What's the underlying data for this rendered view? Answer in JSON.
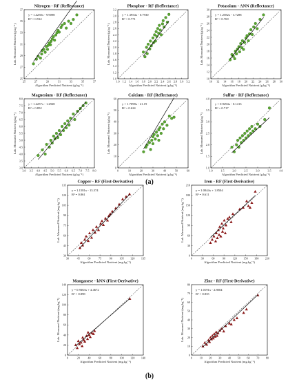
{
  "figure": {
    "labels": [
      "(a)",
      "(b)"
    ]
  },
  "colors": {
    "reflectance_marker": "#5aa832",
    "reflectance_edge": "#2b5a12",
    "derivative_marker": "#8b1a1a",
    "fit_line": "#000000",
    "identity_line": "#555555"
  },
  "chart_data": [
    {
      "type": "scatter",
      "marker": "circle",
      "title": "Nitrogen - RF (Reflectance)",
      "xlabel": "Algorithm Predicted Nutrient (g.kg⁻¹)",
      "ylabel": "Lab. Measured Nutrient (g.kg⁻¹)",
      "equation": "y = 1.4250x - 9.9098",
      "r2": "R² = 0.912",
      "fit": {
        "slope": 1.425,
        "intercept": -9.9098
      },
      "xlim": [
        25,
        37
      ],
      "ylim": [
        25,
        37
      ],
      "xticks": [
        "25",
        "27",
        "29",
        "31",
        "33",
        "35",
        "37"
      ],
      "yticks": [
        "25",
        "27",
        "29",
        "31",
        "33",
        "35",
        "37"
      ],
      "x": [
        26.6,
        27.1,
        27.4,
        27.8,
        28.0,
        28.1,
        28.4,
        28.6,
        28.8,
        29.0,
        29.1,
        29.3,
        29.5,
        29.6,
        29.8,
        30.0,
        30.2,
        30.4,
        30.6,
        30.8,
        31.0,
        31.3,
        31.5,
        31.9,
        32.2,
        32.6,
        33.0,
        33.4,
        34.0
      ],
      "y": [
        27.6,
        28.4,
        28.9,
        28.6,
        29.3,
        29.9,
        30.1,
        29.6,
        30.6,
        30.1,
        30.8,
        31.2,
        30.9,
        31.5,
        31.9,
        32.3,
        31.7,
        32.6,
        33.0,
        33.4,
        33.1,
        33.9,
        34.3,
        34.6,
        33.8,
        35.0,
        34.6,
        35.3,
        36.1
      ]
    },
    {
      "type": "scatter",
      "marker": "circle",
      "title": "Phosphor - RF (Reflectance)",
      "xlabel": "Algorithm Predicted Nutrient (g.kg⁻¹)",
      "ylabel": "Lab. Measured Nutrient (g.kg⁻¹)",
      "equation": "y = 1.3954x - 0.7930",
      "r2": "R² = 0.771",
      "fit": {
        "slope": 1.3954,
        "intercept": -0.793
      },
      "xlim": [
        1.0,
        3.2
      ],
      "ylim": [
        1.0,
        3.2
      ],
      "xticks": [
        "1.0",
        "1.2",
        "1.4",
        "1.6",
        "1.8",
        "2.0",
        "2.2",
        "2.4",
        "2.6",
        "2.8",
        "3.0",
        "3.2"
      ],
      "yticks": [
        "1.0",
        "1.2",
        "1.4",
        "1.6",
        "1.8",
        "2.0",
        "2.2",
        "2.4",
        "2.6",
        "2.8",
        "3.0",
        "3.2"
      ],
      "x": [
        1.8,
        1.85,
        1.9,
        1.92,
        1.95,
        2.0,
        2.02,
        2.05,
        2.1,
        2.12,
        2.15,
        2.18,
        2.2,
        2.22,
        2.25,
        2.28,
        2.3,
        2.33,
        2.36,
        2.4,
        2.42,
        2.45,
        2.5,
        2.55,
        2.6
      ],
      "y": [
        1.85,
        1.7,
        2.0,
        1.8,
        2.1,
        1.95,
        2.2,
        2.05,
        2.3,
        2.15,
        2.4,
        2.2,
        2.5,
        2.35,
        2.6,
        2.45,
        2.7,
        2.55,
        2.4,
        2.75,
        2.85,
        2.65,
        2.95,
        2.8,
        3.05
      ]
    },
    {
      "type": "scatter",
      "marker": "circle",
      "title": "Potassium - ANN (Reflectance)",
      "xlabel": "Algorithm Predicted Nutrient (g.kg⁻¹)",
      "ylabel": "Lab. Measured Nutrient (g.kg⁻¹)",
      "equation": "y = 1.2582x - 3.7288",
      "r2": "R² = 0.769",
      "fit": {
        "slope": 1.2582,
        "intercept": -3.7288
      },
      "xlim": [
        10,
        30
      ],
      "ylim": [
        10,
        30
      ],
      "xticks": [
        "10",
        "12",
        "14",
        "16",
        "18",
        "20",
        "22",
        "24",
        "26",
        "28",
        "30"
      ],
      "yticks": [
        "10",
        "12",
        "14",
        "16",
        "18",
        "20",
        "22",
        "24",
        "26",
        "28",
        "30"
      ],
      "x": [
        15.5,
        16.0,
        16.4,
        16.8,
        17.0,
        17.3,
        17.6,
        18.0,
        18.2,
        18.5,
        18.8,
        19.0,
        19.3,
        19.6,
        20.0,
        20.3,
        20.7,
        21.0,
        21.4,
        21.8,
        22.2,
        22.7,
        23.2,
        24.0,
        25.0
      ],
      "y": [
        15.5,
        17.0,
        16.5,
        15.8,
        18.0,
        17.2,
        18.6,
        19.3,
        17.8,
        20.2,
        19.0,
        21.0,
        18.5,
        20.5,
        21.8,
        22.5,
        21.0,
        23.0,
        24.2,
        22.8,
        25.0,
        26.0,
        24.5,
        27.2,
        28.5
      ]
    },
    {
      "type": "scatter",
      "marker": "circle",
      "title": "Magnesium - RF (Reflectance)",
      "xlabel": "Algorithm Predicted Nutrient (g.kg⁻¹)",
      "ylabel": "Lab. Measured Nutrient (g.kg⁻¹)",
      "equation": "y = 1.2257x - 1.2928",
      "r2": "R² = 0.852",
      "fit": {
        "slope": 1.2257,
        "intercept": -1.2928
      },
      "xlim": [
        3.0,
        8.0
      ],
      "ylim": [
        3.0,
        8.0
      ],
      "xticks": [
        "3.0",
        "3.5",
        "4.0",
        "4.5",
        "5.0",
        "5.5",
        "6.0",
        "6.5",
        "7.0",
        "7.5",
        "8.0"
      ],
      "yticks": [
        "3.0",
        "3.5",
        "4.0",
        "4.5",
        "5.0",
        "5.5",
        "6.0",
        "6.5",
        "7.0",
        "7.5",
        "8.0"
      ],
      "x": [
        4.0,
        4.3,
        4.5,
        4.6,
        4.8,
        4.9,
        5.0,
        5.1,
        5.2,
        5.3,
        5.4,
        5.5,
        5.6,
        5.7,
        5.8,
        5.9,
        6.0,
        6.1,
        6.2,
        6.3,
        6.5,
        6.6,
        6.8,
        7.0,
        7.2,
        7.4
      ],
      "y": [
        3.9,
        4.3,
        4.0,
        4.7,
        4.5,
        5.0,
        4.8,
        5.3,
        5.1,
        5.5,
        5.2,
        5.7,
        5.4,
        6.0,
        5.7,
        6.2,
        5.9,
        6.4,
        6.1,
        6.6,
        6.9,
        6.5,
        7.1,
        7.3,
        7.5,
        7.7
      ]
    },
    {
      "type": "scatter",
      "marker": "circle",
      "title": "Calcium - RF (Reflectance)",
      "xlabel": "Algorithm Predicted Nutrient (g.kg⁻¹)",
      "ylabel": "Lab. Measured Nutrient (g.kg⁻¹)",
      "equation": "y = 1.7098x - 21.19",
      "r2": "R² = 0.624",
      "fit": {
        "slope": 1.7098,
        "intercept": -21.19
      },
      "xlim": [
        0,
        60
      ],
      "ylim": [
        0,
        60
      ],
      "xticks": [
        "0",
        "10",
        "20",
        "30",
        "40",
        "50",
        "60"
      ],
      "yticks": [
        "0",
        "10",
        "20",
        "30",
        "40",
        "50",
        "60"
      ],
      "x": [
        22,
        24,
        25,
        27,
        28,
        29,
        30,
        30,
        31,
        32,
        33,
        34,
        35,
        35,
        36,
        37,
        38,
        39,
        40,
        42,
        44,
        46,
        48
      ],
      "y": [
        14,
        18,
        20,
        22,
        16,
        24,
        27,
        21,
        29,
        25,
        31,
        28,
        33,
        24,
        35,
        30,
        38,
        34,
        40,
        37,
        45,
        43,
        44
      ]
    },
    {
      "type": "scatter",
      "marker": "circle",
      "title": "Sulfur - RF (Reflectance)",
      "xlabel": "Algorithm Predicted Nutrient (g.kg⁻¹)",
      "ylabel": "Lab. Measured Nutrient (g.kg⁻¹)",
      "equation": "y = 0.9494x - 0.1413",
      "r2": "R² = 0.717",
      "fit": {
        "slope": 0.9494,
        "intercept": -0.1413
      },
      "xlim": [
        1.0,
        4.0
      ],
      "ylim": [
        1.0,
        4.0
      ],
      "xticks": [
        "1.0",
        "1.5",
        "2.0",
        "2.5",
        "3.0",
        "3.5",
        "4.0"
      ],
      "yticks": [
        "1.0",
        "1.5",
        "2.0",
        "2.5",
        "3.0",
        "3.5",
        "4.0"
      ],
      "x": [
        1.9,
        2.0,
        2.1,
        2.15,
        2.2,
        2.25,
        2.3,
        2.35,
        2.4,
        2.45,
        2.5,
        2.55,
        2.6,
        2.65,
        2.7,
        2.75,
        2.8,
        2.9,
        3.0,
        3.1,
        3.3,
        3.5
      ],
      "y": [
        1.9,
        1.7,
        2.0,
        2.2,
        1.9,
        2.3,
        2.1,
        2.4,
        2.2,
        2.5,
        2.3,
        2.6,
        2.4,
        2.7,
        2.5,
        2.8,
        2.6,
        2.7,
        2.9,
        2.8,
        3.1,
        3.6
      ]
    },
    {
      "type": "scatter",
      "marker": "triangle",
      "title": "Copper - RF (First-Derivative)",
      "xlabel": "Algorithm Predicted Nutrient (mg.kg⁻¹)",
      "ylabel": "Lab. Measured Nutrient (mg.kg⁻¹)",
      "equation": "y = 1.1581x - 13.374",
      "r2": "R² = 0.861",
      "fit": {
        "slope": 1.1581,
        "intercept": -13.374
      },
      "xlim": [
        30,
        140
      ],
      "ylim": [
        30,
        140
      ],
      "xticks": [
        "30",
        "45",
        "60",
        "75",
        "90",
        "105",
        "120",
        "135"
      ],
      "yticks": [
        "30",
        "45",
        "60",
        "75",
        "90",
        "105",
        "120",
        "135"
      ],
      "x": [
        48,
        50,
        52,
        55,
        57,
        60,
        62,
        65,
        67,
        70,
        72,
        75,
        78,
        80,
        82,
        85,
        88,
        90,
        92,
        95,
        100,
        105,
        110,
        115,
        120
      ],
      "y": [
        42,
        50,
        46,
        55,
        60,
        53,
        65,
        58,
        70,
        66,
        75,
        70,
        80,
        84,
        78,
        88,
        85,
        92,
        95,
        99,
        104,
        110,
        118,
        122,
        126
      ]
    },
    {
      "type": "scatter",
      "marker": "triangle",
      "title": "Iron - RF (First-Derivative)",
      "xlabel": "Algorithm Predicted Nutrient (mg.kg⁻¹)",
      "ylabel": "Lab. Measured Nutrient (mg.kg⁻¹)",
      "equation": "y = 1.0044x + 1.8504",
      "r2": "R² = 0.611",
      "fit": {
        "slope": 1.0044,
        "intercept": 1.8504
      },
      "xlim": [
        0,
        220
      ],
      "ylim": [
        0,
        220
      ],
      "xticks": [
        "0",
        "30",
        "60",
        "90",
        "120",
        "150",
        "180",
        "210"
      ],
      "yticks": [
        "0",
        "30",
        "60",
        "90",
        "120",
        "150",
        "180",
        "210"
      ],
      "x": [
        55,
        60,
        65,
        70,
        72,
        75,
        78,
        80,
        82,
        85,
        88,
        90,
        92,
        95,
        98,
        100,
        105,
        110,
        115,
        120,
        140,
        150,
        160,
        165,
        170,
        175,
        185
      ],
      "y": [
        40,
        50,
        60,
        45,
        70,
        55,
        80,
        65,
        90,
        60,
        100,
        75,
        85,
        110,
        70,
        95,
        115,
        120,
        105,
        130,
        145,
        150,
        170,
        155,
        150,
        165,
        200
      ]
    },
    {
      "type": "scatter",
      "marker": "triangle",
      "title": "Manganese - kNN (First-Derivative)",
      "xlabel": "Algorithm Predicted Nutrient (mg.kg⁻¹)",
      "ylabel": "Lab. Measured Nutrient (mg.kg⁻¹)",
      "equation": "y = 0.9363x + 4.4672",
      "r2": "R² = 0.898",
      "fit": {
        "slope": 0.9363,
        "intercept": 4.4672
      },
      "xlim": [
        0,
        140
      ],
      "ylim": [
        0,
        140
      ],
      "xticks": [
        "0",
        "20",
        "40",
        "60",
        "80",
        "100",
        "120",
        "140"
      ],
      "yticks": [
        "0",
        "20",
        "40",
        "60",
        "80",
        "100",
        "120",
        "140"
      ],
      "x": [
        15,
        18,
        20,
        22,
        25,
        27,
        28,
        30,
        32,
        35,
        37,
        38,
        40,
        42,
        45,
        48,
        50,
        115
      ],
      "y": [
        20,
        14,
        28,
        22,
        25,
        18,
        35,
        30,
        27,
        38,
        32,
        45,
        40,
        36,
        44,
        42,
        48,
        112
      ]
    },
    {
      "type": "scatter",
      "marker": "triangle",
      "title": "Zinc - RF (First-Derivative)",
      "xlabel": "Algorithm Predicted Nutrient (mg.kg⁻¹)",
      "ylabel": "Lab. Measured Nutrient (mg.kg⁻¹)",
      "equation": "y = 1.0191x - 2.8004",
      "r2": "R² = 0.835",
      "fit": {
        "slope": 1.0191,
        "intercept": -2.8004
      },
      "xlim": [
        0,
        80
      ],
      "ylim": [
        0,
        80
      ],
      "xticks": [
        "0",
        "10",
        "20",
        "30",
        "40",
        "50",
        "60",
        "70",
        "80"
      ],
      "yticks": [
        "0",
        "10",
        "20",
        "30",
        "40",
        "50",
        "60",
        "70",
        "80"
      ],
      "x": [
        12,
        14,
        16,
        18,
        19,
        20,
        21,
        22,
        23,
        24,
        25,
        26,
        27,
        28,
        30,
        32,
        34,
        36,
        40,
        42,
        45,
        48,
        55,
        58,
        70
      ],
      "y": [
        10,
        14,
        12,
        17,
        15,
        20,
        18,
        22,
        19,
        24,
        21,
        26,
        22,
        25,
        28,
        30,
        27,
        33,
        36,
        35,
        40,
        42,
        48,
        52,
        68
      ]
    }
  ]
}
